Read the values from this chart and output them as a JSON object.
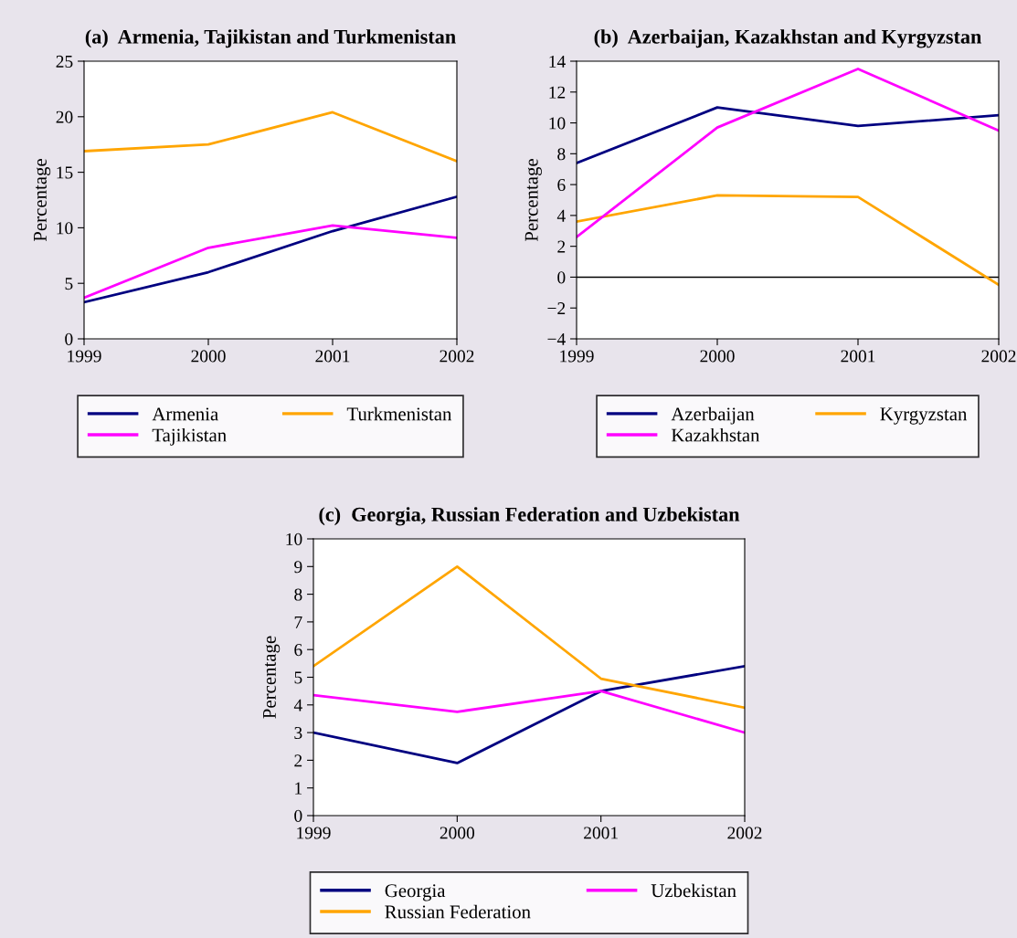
{
  "chart_data": [
    {
      "type": "line",
      "title": "(a)  Armenia, Tajikistan and Turkmenistan",
      "ylabel": "Percentage",
      "x": [
        1999,
        2000,
        2001,
        2002
      ],
      "xlim": [
        1999,
        2002
      ],
      "xticks": [
        1999,
        2000,
        2001,
        2002
      ],
      "ylim": [
        0,
        25
      ],
      "yticks": [
        0,
        5,
        10,
        15,
        20,
        25
      ],
      "grid": false,
      "legend": "bottom",
      "marker": "none",
      "line_style": "solid",
      "series": [
        {
          "name": "Armenia",
          "color": "#000080",
          "values": [
            3.3,
            6.0,
            9.7,
            12.8
          ]
        },
        {
          "name": "Turkmenistan",
          "color": "#ffa500",
          "values": [
            16.9,
            17.5,
            20.4,
            16.0
          ]
        },
        {
          "name": "Tajikistan",
          "color": "#ff00ff",
          "values": [
            3.7,
            8.2,
            10.2,
            9.1
          ]
        }
      ]
    },
    {
      "type": "line",
      "title": "(b)  Azerbaijan, Kazakhstan and Kyrgyzstan",
      "ylabel": "Percentage",
      "x": [
        1999,
        2000,
        2001,
        2002
      ],
      "xlim": [
        1999,
        2002
      ],
      "xticks": [
        1999,
        2000,
        2001,
        2002
      ],
      "ylim": [
        -4,
        14
      ],
      "yticks": [
        {
          "value": -4,
          "label": "−4"
        },
        {
          "value": -2,
          "label": "−2"
        },
        0,
        2,
        4,
        6,
        8,
        10,
        12,
        14
      ],
      "grid": false,
      "legend": "bottom",
      "marker": "none",
      "line_style": "solid",
      "ref_lines": [
        {
          "axis": "y",
          "value": 0,
          "color": "#000000"
        }
      ],
      "series": [
        {
          "name": "Azerbaijan",
          "color": "#000080",
          "values": [
            7.4,
            11.0,
            9.8,
            10.5
          ]
        },
        {
          "name": "Kyrgyzstan",
          "color": "#ffa500",
          "values": [
            3.6,
            5.3,
            5.2,
            -0.5
          ]
        },
        {
          "name": "Kazakhstan",
          "color": "#ff00ff",
          "values": [
            2.6,
            9.7,
            13.5,
            9.5
          ]
        }
      ]
    },
    {
      "type": "line",
      "title": "(c)  Georgia, Russian Federation and Uzbekistan",
      "ylabel": "Percentage",
      "x": [
        1999,
        2000,
        2001,
        2002
      ],
      "xlim": [
        1999,
        2002
      ],
      "xticks": [
        1999,
        2000,
        2001,
        2002
      ],
      "ylim": [
        0,
        10
      ],
      "yticks": [
        0,
        1,
        2,
        3,
        4,
        5,
        6,
        7,
        8,
        9,
        10
      ],
      "grid": false,
      "legend": "bottom",
      "marker": "none",
      "line_style": "solid",
      "series": [
        {
          "name": "Georgia",
          "color": "#000080",
          "values": [
            3.0,
            1.9,
            4.5,
            5.4
          ]
        },
        {
          "name": "Uzbekistan",
          "color": "#ff00ff",
          "values": [
            4.35,
            3.75,
            4.5,
            3.0
          ]
        },
        {
          "name": "Russian Federation",
          "color": "#ffa500",
          "values": [
            5.4,
            9.0,
            4.95,
            3.9
          ]
        }
      ]
    }
  ]
}
